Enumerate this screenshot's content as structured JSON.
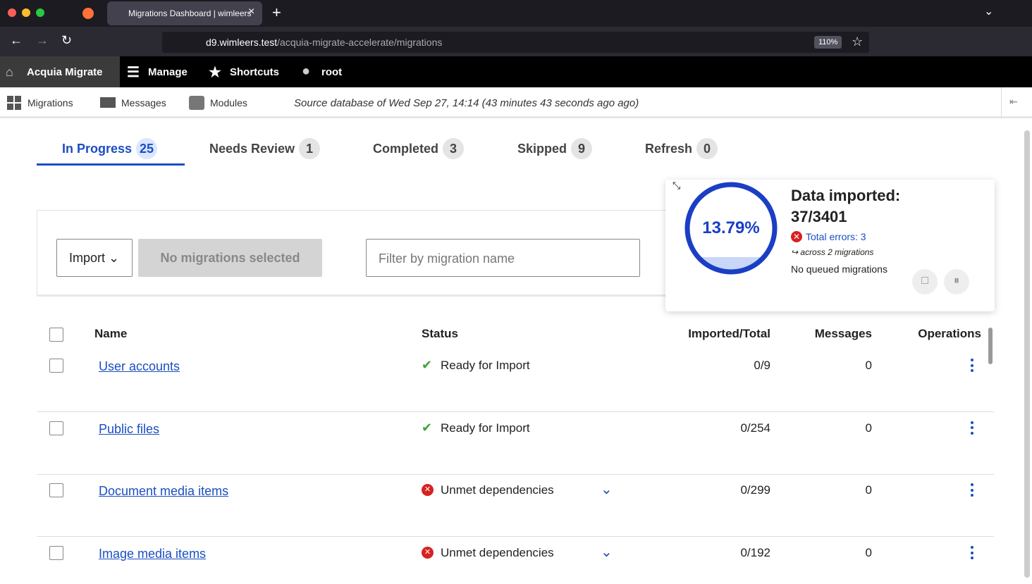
{
  "browser": {
    "tab_title": "Migrations Dashboard | wimleers",
    "url_host": "d9.wimleers.test",
    "url_path": "/acquia-migrate-accelerate/migrations",
    "zoom": "110%"
  },
  "toolbar": {
    "brand": "Acquia Migrate",
    "items": [
      "Manage",
      "Shortcuts",
      "root"
    ]
  },
  "subnav": {
    "items": [
      "Migrations",
      "Messages",
      "Modules"
    ],
    "source_note": "Source database of Wed Sep 27, 14:14 (43 minutes 43 seconds ago ago)"
  },
  "tabs": [
    {
      "label": "In Progress",
      "count": 25
    },
    {
      "label": "Needs Review",
      "count": 1
    },
    {
      "label": "Completed",
      "count": 3
    },
    {
      "label": "Skipped",
      "count": 9
    },
    {
      "label": "Refresh",
      "count": 0
    }
  ],
  "actions": {
    "import": "Import",
    "bulk": "No migrations selected",
    "filter_placeholder": "Filter by migration name"
  },
  "progress": {
    "percent": "13.79%",
    "title": "Data imported:",
    "ratio": "37/3401",
    "errors": "Total errors: 3",
    "errors_detail": "across 2 migrations",
    "queue": "No queued migrations"
  },
  "table": {
    "headers": [
      "Name",
      "Status",
      "Imported/Total",
      "Messages",
      "Operations"
    ],
    "rows": [
      [
        "User accounts",
        "Ready for Import",
        "0/9",
        0
      ],
      [
        "Public files",
        "Ready for Import",
        "0/254",
        0
      ],
      [
        "Document media items",
        "Unmet dependencies",
        "0/299",
        0
      ],
      [
        "Image media items",
        "Unmet dependencies",
        "0/192",
        0
      ]
    ]
  }
}
